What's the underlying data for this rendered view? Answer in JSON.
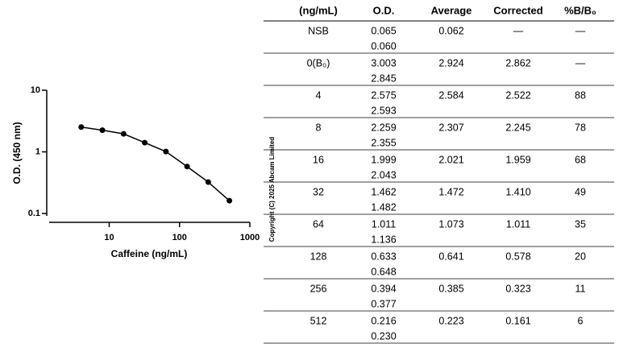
{
  "chart_data": {
    "type": "line",
    "x_label": "Caffeine (ng/mL)",
    "y_label": "O.D. (450 nm)",
    "x": [
      4,
      8,
      16,
      32,
      64,
      128,
      256,
      512
    ],
    "values": [
      2.522,
      2.245,
      1.959,
      1.41,
      1.011,
      0.578,
      0.323,
      0.161
    ],
    "color": "#000000",
    "x_log": true,
    "y_log": true,
    "xlim": [
      1.4,
      1000
    ],
    "xticks": [
      10,
      100,
      1000
    ],
    "ylim": [
      0.1,
      10
    ],
    "yticks": [
      0.1,
      1,
      10
    ]
  },
  "copyright": "Copyright (C) 2025 Abcam Limited",
  "table": {
    "header": [
      "(ng/mL)",
      "O.D.",
      "Average",
      "Corrected",
      "%B/B₀"
    ],
    "rows": [
      {
        "conc": "NSB",
        "od": [
          "0.065",
          "0.060"
        ],
        "average": "0.062",
        "corrected": "—",
        "pct": "—"
      },
      {
        "conc": "0(B₀)",
        "od": [
          "3.003",
          "2.845"
        ],
        "average": "2.924",
        "corrected": "2.862",
        "pct": "—"
      },
      {
        "conc": "4",
        "od": [
          "2.575",
          "2.593"
        ],
        "average": "2.584",
        "corrected": "2.522",
        "pct": "88"
      },
      {
        "conc": "8",
        "od": [
          "2.259",
          "2.355"
        ],
        "average": "2.307",
        "corrected": "2.245",
        "pct": "78"
      },
      {
        "conc": "16",
        "od": [
          "1.999",
          "2.043"
        ],
        "average": "2.021",
        "corrected": "1.959",
        "pct": "68"
      },
      {
        "conc": "32",
        "od": [
          "1.462",
          "1.482"
        ],
        "average": "1.472",
        "corrected": "1.410",
        "pct": "49"
      },
      {
        "conc": "64",
        "od": [
          "1.011",
          "1.136"
        ],
        "average": "1.073",
        "corrected": "1.011",
        "pct": "35"
      },
      {
        "conc": "128",
        "od": [
          "0.633",
          "0.648"
        ],
        "average": "0.641",
        "corrected": "0.578",
        "pct": "20"
      },
      {
        "conc": "256",
        "od": [
          "0.394",
          "0.377"
        ],
        "average": "0.385",
        "corrected": "0.323",
        "pct": "11"
      },
      {
        "conc": "512",
        "od": [
          "0.216",
          "0.230"
        ],
        "average": "0.223",
        "corrected": "0.161",
        "pct": "6"
      }
    ]
  }
}
